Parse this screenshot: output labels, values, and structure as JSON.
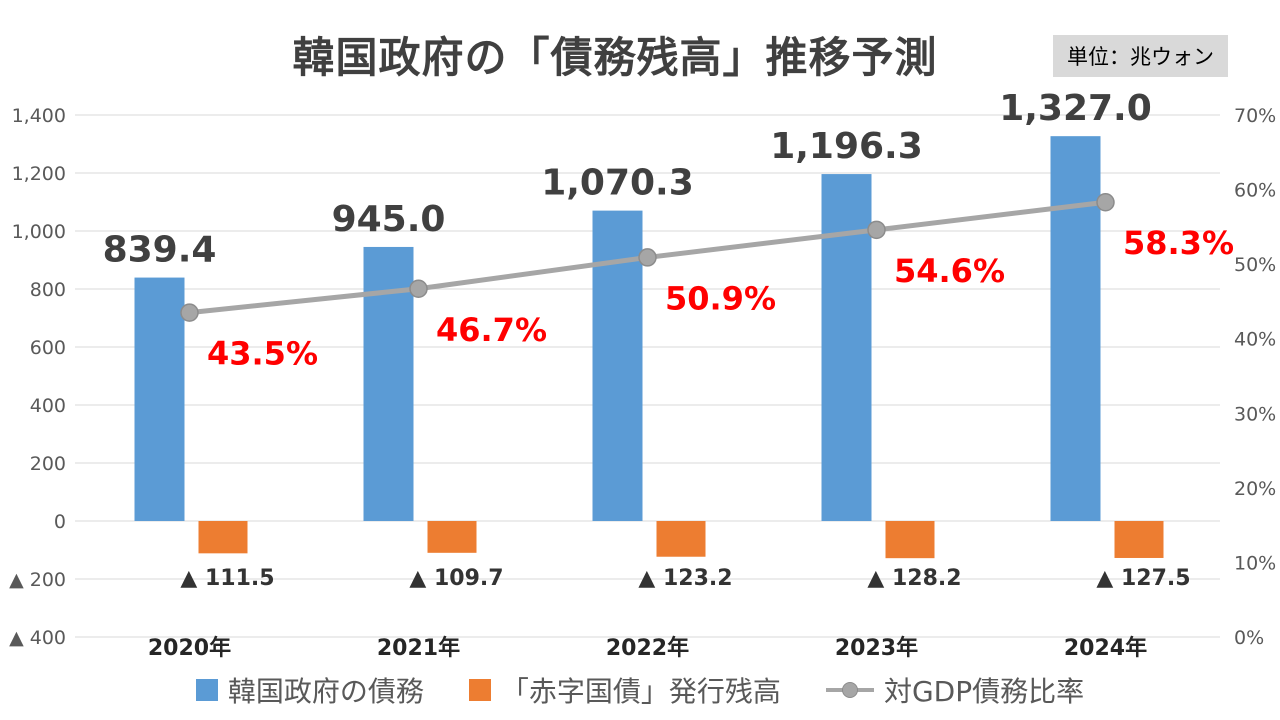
{
  "title": "韓国政府の「債務残高」推移予測",
  "unit_badge": "単位：兆ウォン",
  "colors": {
    "title_text": "#404040",
    "unit_badge_bg": "#d9d9d9",
    "debt_bar": "#5b9bd5",
    "deficit_bar": "#ed7d31",
    "gdp_line": "#a6a6a6",
    "percent_label": "#ff0000",
    "value_label": "#404040",
    "neg_value_label": "#333333",
    "axis_text": "#595959",
    "category_text": "#262626",
    "gridline": "#d9d9d9"
  },
  "chart_data": {
    "type": "bar+line combo",
    "categories": [
      "2020年",
      "2021年",
      "2022年",
      "2023年",
      "2024年"
    ],
    "series": [
      {
        "name": "韓国政府の債務",
        "type": "bar",
        "axis": "left",
        "color": "#5b9bd5",
        "values": [
          839.4,
          945.0,
          1070.3,
          1196.3,
          1327.0
        ],
        "data_labels": [
          "839.4",
          "945.0",
          "1,070.3",
          "1,196.3",
          "1,327.0"
        ]
      },
      {
        "name": "「赤字国債」発行残高",
        "type": "bar",
        "axis": "left",
        "color": "#ed7d31",
        "values": [
          -111.5,
          -109.7,
          -123.2,
          -128.2,
          -127.5
        ],
        "data_labels": [
          "▲ 111.5",
          "▲ 109.7",
          "▲ 123.2",
          "▲ 128.2",
          "▲ 127.5"
        ]
      },
      {
        "name": "対GDP債務比率",
        "type": "line",
        "axis": "right",
        "color": "#a6a6a6",
        "label_color": "#ff0000",
        "values": [
          43.5,
          46.7,
          50.9,
          54.6,
          58.3
        ],
        "data_labels": [
          "43.5%",
          "46.7%",
          "50.9%",
          "54.6%",
          "58.3%"
        ]
      }
    ],
    "left_axis": {
      "min": -400,
      "max": 1400,
      "tick_values": [
        1400,
        1200,
        1000,
        800,
        600,
        400,
        200,
        0,
        -200,
        -400
      ],
      "tick_labels": [
        "1,400",
        "1,200",
        "1,000",
        "800",
        "600",
        "400",
        "200",
        "0",
        "▲ 200",
        "▲ 400"
      ]
    },
    "right_axis": {
      "min": 0,
      "max": 70,
      "tick_values": [
        70,
        60,
        50,
        40,
        30,
        20,
        10,
        0
      ],
      "tick_labels": [
        "70%",
        "60%",
        "50%",
        "40%",
        "30%",
        "20%",
        "10%",
        "0%"
      ]
    },
    "grid": true,
    "legend_position": "bottom",
    "legend": [
      {
        "label": "韓国政府の債務",
        "swatch": "square",
        "color": "#5b9bd5"
      },
      {
        "label": "「赤字国債」発行残高",
        "swatch": "square",
        "color": "#ed7d31"
      },
      {
        "label": "対GDP債務比率",
        "swatch": "line-dot",
        "color": "#a6a6a6"
      }
    ]
  }
}
